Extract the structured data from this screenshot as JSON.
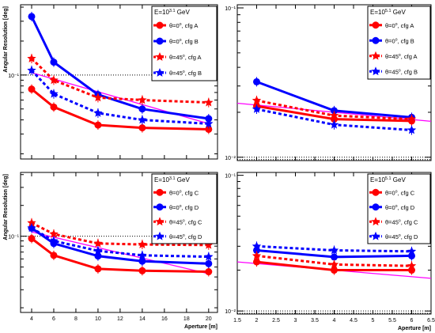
{
  "chart_data": [
    {
      "id": "tl",
      "type": "line",
      "ylabel": "Angular Resolution [deg]",
      "xlabel": "",
      "xscale": "linear",
      "yscale": "log",
      "xlim": [
        3.0,
        20.8
      ],
      "ylim": [
        0.018,
        0.42
      ],
      "xticks": [
        4,
        6,
        8,
        10,
        12,
        14,
        16,
        18,
        20
      ],
      "xtick_labels": [
        "",
        "",
        "",
        "",
        "",
        "",
        "",
        "",
        ""
      ],
      "yticks_major": [
        0.1
      ],
      "ytick_labels": [
        "10⁻¹"
      ],
      "reference_line": 0.1,
      "legend_title": "E=10^3.1 GeV",
      "legend_title_parts": [
        "E=10",
        "3.1",
        " GeV"
      ],
      "legend": [
        {
          "label": "θ=0°, cfg A",
          "parts": [
            "θ=0",
            "o",
            ", cfg A"
          ]
        },
        {
          "label": "θ=0°, cfg B",
          "parts": [
            "θ=0",
            "o",
            ", cfg B"
          ]
        },
        {
          "label": "θ=45°, cfg A",
          "parts": [
            "θ=45",
            "o",
            ", cfg A"
          ]
        },
        {
          "label": "θ=45°, cfg B",
          "parts": [
            "θ=45",
            "o",
            ", cfg B"
          ]
        }
      ],
      "series": [
        {
          "name": "θ=0°, cfg A",
          "color": "#ff0000",
          "marker": "circle",
          "dash": false,
          "x": [
            4,
            6,
            10,
            14,
            20
          ],
          "y": [
            0.075,
            0.052,
            0.036,
            0.034,
            0.033
          ]
        },
        {
          "name": "θ=0°, cfg B",
          "color": "#0000ff",
          "marker": "circle",
          "dash": false,
          "x": [
            4,
            6,
            10,
            14,
            20
          ],
          "y": [
            0.33,
            0.13,
            0.067,
            0.05,
            0.041
          ]
        },
        {
          "name": "θ=45°, cfg A",
          "color": "#ff0000",
          "marker": "star",
          "dash": true,
          "x": [
            4,
            6,
            10,
            14,
            20
          ],
          "y": [
            0.14,
            0.09,
            0.063,
            0.06,
            0.057
          ]
        },
        {
          "name": "θ=45°, cfg B",
          "color": "#0000ff",
          "marker": "star",
          "dash": true,
          "x": [
            4,
            6,
            10,
            14,
            20
          ],
          "y": [
            0.11,
            0.068,
            0.046,
            0.04,
            0.037
          ]
        }
      ],
      "fit_line": {
        "color": "#ff00ff",
        "x": [
          4,
          20
        ],
        "y": [
          0.105,
          0.037
        ]
      }
    },
    {
      "id": "tr",
      "type": "line",
      "ylabel": "",
      "xlabel": "",
      "xscale": "linear",
      "yscale": "log",
      "xlim": [
        1.5,
        6.5
      ],
      "ylim": [
        0.0095,
        0.105
      ],
      "xticks": [
        1.5,
        2,
        2.5,
        3,
        3.5,
        4,
        4.5,
        5,
        5.5,
        6,
        6.5
      ],
      "xtick_labels": [
        "",
        "",
        "",
        "",
        "",
        "",
        "",
        "",
        "",
        "",
        ""
      ],
      "yticks_major": [
        0.01,
        0.1
      ],
      "ytick_labels": [
        "10⁻²",
        "10⁻¹"
      ],
      "reference_line": 0.01,
      "legend_title": "E=10^5.1 GeV",
      "legend_title_parts": [
        "E=10",
        "5.1",
        " GeV"
      ],
      "legend": [
        {
          "label": "θ=0°, cfg A",
          "parts": [
            "θ=0",
            "o",
            ", cfg A"
          ]
        },
        {
          "label": "θ=0°, cfg B",
          "parts": [
            "θ=0",
            "o",
            ", cfg B"
          ]
        },
        {
          "label": "θ=45°, cfg A",
          "parts": [
            "θ=45",
            "o",
            ", cfg A"
          ]
        },
        {
          "label": "θ=45°, cfg B",
          "parts": [
            "θ=45",
            "o",
            ", cfg B"
          ]
        }
      ],
      "series": [
        {
          "name": "θ=0°, cfg A",
          "color": "#ff0000",
          "marker": "circle",
          "dash": false,
          "x": [
            2,
            4,
            6
          ],
          "y": [
            0.022,
            0.018,
            0.0175
          ]
        },
        {
          "name": "θ=0°, cfg B",
          "color": "#0000ff",
          "marker": "circle",
          "dash": false,
          "x": [
            2,
            4,
            6
          ],
          "y": [
            0.032,
            0.0205,
            0.0185
          ]
        },
        {
          "name": "θ=45°, cfg A",
          "color": "#ff0000",
          "marker": "star",
          "dash": true,
          "x": [
            2,
            4,
            6
          ],
          "y": [
            0.024,
            0.019,
            0.018
          ]
        },
        {
          "name": "θ=45°, cfg B",
          "color": "#0000ff",
          "marker": "star",
          "dash": true,
          "x": [
            2,
            4,
            6
          ],
          "y": [
            0.021,
            0.0165,
            0.0152
          ]
        }
      ],
      "fit_line": {
        "color": "#ff00ff",
        "x": [
          1.5,
          6.5
        ],
        "y": [
          0.023,
          0.0174
        ]
      }
    },
    {
      "id": "bl",
      "type": "line",
      "ylabel": "Angular Resolution [deg]",
      "xlabel": "Aperture [m]",
      "xscale": "linear",
      "yscale": "log",
      "xlim": [
        3.0,
        20.8
      ],
      "ylim": [
        0.018,
        0.42
      ],
      "xticks": [
        4,
        6,
        8,
        10,
        12,
        14,
        16,
        18,
        20
      ],
      "xtick_labels": [
        "4",
        "6",
        "8",
        "10",
        "12",
        "14",
        "16",
        "18",
        "20"
      ],
      "yticks_major": [
        0.1
      ],
      "ytick_labels": [
        "10⁻¹"
      ],
      "reference_line": 0.1,
      "legend_title": "E=10^3.1 GeV",
      "legend_title_parts": [
        "E=10",
        "3.1",
        " GeV"
      ],
      "legend": [
        {
          "label": "θ=0°, cfg C",
          "parts": [
            "θ=0",
            "o",
            ", cfg C"
          ]
        },
        {
          "label": "θ=0°, cfg D",
          "parts": [
            "θ=0",
            "o",
            ", cfg D"
          ]
        },
        {
          "label": "θ=45°, cfg C",
          "parts": [
            "θ=45",
            "o",
            ", cfg C"
          ]
        },
        {
          "label": "θ=45°, cfg D",
          "parts": [
            "θ=45",
            "o",
            ", cfg D"
          ]
        }
      ],
      "series": [
        {
          "name": "θ=0°, cfg C",
          "color": "#ff0000",
          "marker": "circle",
          "dash": false,
          "x": [
            4,
            6,
            10,
            14,
            20
          ],
          "y": [
            0.095,
            0.065,
            0.048,
            0.046,
            0.045
          ]
        },
        {
          "name": "θ=0°, cfg D",
          "color": "#0000ff",
          "marker": "circle",
          "dash": false,
          "x": [
            4,
            6,
            10,
            14,
            20
          ],
          "y": [
            0.12,
            0.085,
            0.064,
            0.057,
            0.054
          ]
        },
        {
          "name": "θ=45°, cfg C",
          "color": "#ff0000",
          "marker": "star",
          "dash": true,
          "x": [
            4,
            6,
            10,
            14,
            20
          ],
          "y": [
            0.135,
            0.105,
            0.085,
            0.083,
            0.082
          ]
        },
        {
          "name": "θ=45°, cfg D",
          "color": "#0000ff",
          "marker": "star",
          "dash": true,
          "x": [
            4,
            6,
            10,
            14,
            20
          ],
          "y": [
            0.12,
            0.09,
            0.072,
            0.065,
            0.063
          ]
        }
      ],
      "fit_line": {
        "color": "#ff00ff",
        "x": [
          4,
          20
        ],
        "y": [
          0.11,
          0.043
        ]
      }
    },
    {
      "id": "br",
      "type": "line",
      "ylabel": "",
      "xlabel": "Aperture [m]",
      "xscale": "linear",
      "yscale": "log",
      "xlim": [
        1.5,
        6.5
      ],
      "ylim": [
        0.0095,
        0.105
      ],
      "xticks": [
        1.5,
        2,
        2.5,
        3,
        3.5,
        4,
        4.5,
        5,
        5.5,
        6,
        6.5
      ],
      "xtick_labels": [
        "1.5",
        "2",
        "2.5",
        "3",
        "3.5",
        "4",
        "4.5",
        "5",
        "5.5",
        "6",
        "6.5"
      ],
      "yticks_major": [
        0.01,
        0.1
      ],
      "ytick_labels": [
        "10⁻²",
        "10⁻¹"
      ],
      "reference_line": 0.01,
      "legend_title": "E=10^5.1 GeV",
      "legend_title_parts": [
        "E=10",
        "5.1",
        " GeV"
      ],
      "legend": [
        {
          "label": "θ=0°, cfg C",
          "parts": [
            "θ=0",
            "o",
            ", cfg C"
          ]
        },
        {
          "label": "θ=0°, cfg D",
          "parts": [
            "θ=0",
            "o",
            ", cfg D"
          ]
        },
        {
          "label": "θ=45°, cfg C",
          "parts": [
            "θ=45",
            "o",
            ", cfg C"
          ]
        },
        {
          "label": "θ=45°, cfg D",
          "parts": [
            "θ=45",
            "o",
            ", cfg D"
          ]
        }
      ],
      "series": [
        {
          "name": "θ=0°, cfg C",
          "color": "#ff0000",
          "marker": "circle",
          "dash": false,
          "x": [
            2,
            4,
            6
          ],
          "y": [
            0.023,
            0.02,
            0.02
          ]
        },
        {
          "name": "θ=0°, cfg D",
          "color": "#0000ff",
          "marker": "circle",
          "dash": false,
          "x": [
            2,
            4,
            6
          ],
          "y": [
            0.028,
            0.025,
            0.0255
          ]
        },
        {
          "name": "θ=45°, cfg C",
          "color": "#ff0000",
          "marker": "star",
          "dash": true,
          "x": [
            2,
            4,
            6
          ],
          "y": [
            0.0255,
            0.022,
            0.0215
          ]
        },
        {
          "name": "θ=45°, cfg D",
          "color": "#0000ff",
          "marker": "star",
          "dash": true,
          "x": [
            2,
            4,
            6
          ],
          "y": [
            0.03,
            0.028,
            0.0275
          ]
        }
      ],
      "fit_line": {
        "color": "#ff00ff",
        "x": [
          1.5,
          6.5
        ],
        "y": [
          0.023,
          0.0174
        ]
      }
    }
  ]
}
